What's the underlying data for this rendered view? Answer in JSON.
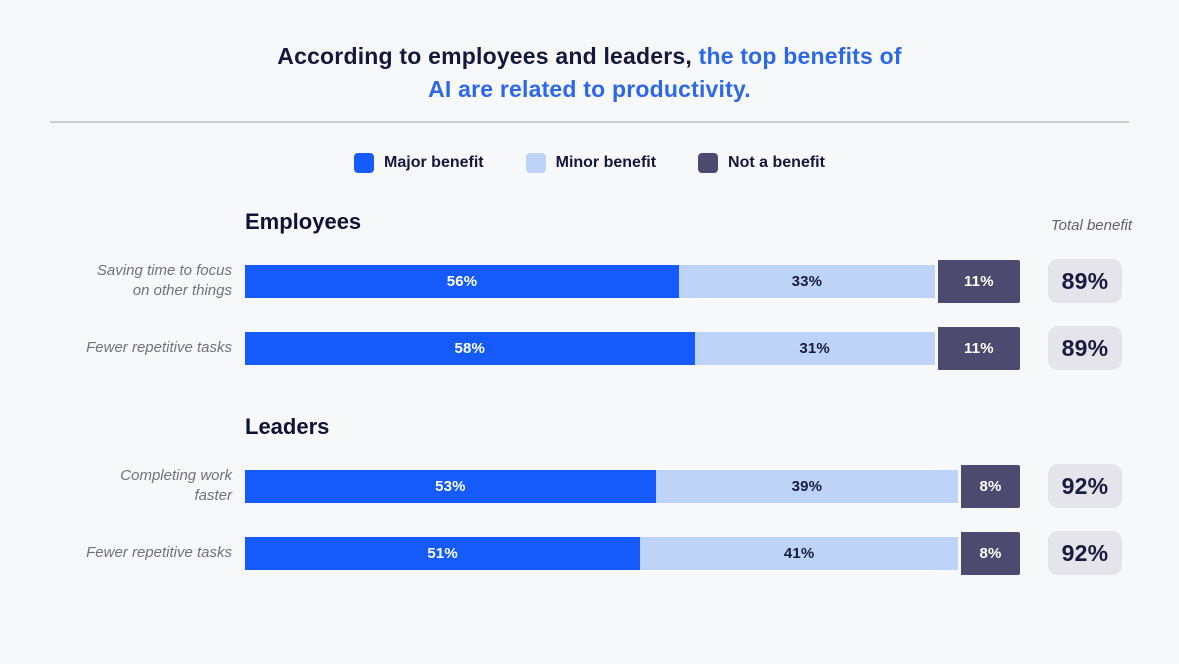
{
  "title": {
    "dark": "According to employees and leaders, ",
    "blue_line1": "the top benefits of",
    "blue_line2": "AI are related to productivity."
  },
  "chart_data": {
    "type": "bar",
    "variant": "horizontal-stacked-percentage",
    "title": "According to employees and leaders, the top benefits of AI are related to productivity.",
    "title_highlight": "the top benefits of AI are related to productivity.",
    "unit": "%",
    "legend": [
      "Major benefit",
      "Minor benefit",
      "Not a benefit"
    ],
    "legend_position": "top",
    "total_column_label": "Total benefit",
    "series_names": [
      "Major benefit",
      "Minor benefit",
      "Not a benefit"
    ],
    "xlim": [
      0,
      100
    ],
    "grid": false,
    "sections": [
      {
        "group": "Employees",
        "rows": [
          {
            "category": "Saving time to focus on other things",
            "label_lines": [
              "Saving time to focus",
              "on other things"
            ],
            "values": [
              56,
              33,
              11
            ],
            "value_labels": [
              "56%",
              "33%",
              "11%"
            ],
            "total": 89,
            "total_label": "89%"
          },
          {
            "category": "Fewer repetitive tasks",
            "label_lines": [
              "Fewer repetitive tasks"
            ],
            "values": [
              58,
              31,
              11
            ],
            "value_labels": [
              "58%",
              "31%",
              "11%"
            ],
            "total": 89,
            "total_label": "89%"
          }
        ]
      },
      {
        "group": "Leaders",
        "rows": [
          {
            "category": "Completing work faster",
            "label_lines": [
              "Completing work",
              "faster"
            ],
            "values": [
              53,
              39,
              8
            ],
            "value_labels": [
              "53%",
              "39%",
              "8%"
            ],
            "total": 92,
            "total_label": "92%"
          },
          {
            "category": "Fewer repetitive tasks",
            "label_lines": [
              "Fewer repetitive tasks"
            ],
            "values": [
              51,
              41,
              8
            ],
            "value_labels": [
              "51%",
              "41%",
              "8%"
            ],
            "total": 92,
            "total_label": "92%"
          }
        ]
      }
    ],
    "colors": {
      "major_benefit": "#155BFB",
      "minor_benefit": "#BDD4F8",
      "not_a_benefit": "#4C4B6F",
      "title_accent": "#2D68E9",
      "navy_text": "#14183A",
      "background": "#F7F8FA",
      "badge_background": "#E4E4EA",
      "muted_label": "#70717E",
      "divider": "#C9CAD2"
    }
  }
}
